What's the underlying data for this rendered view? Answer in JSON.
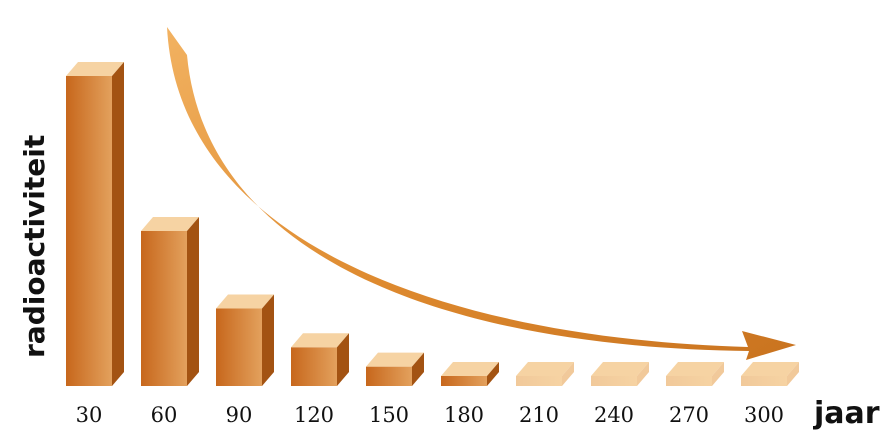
{
  "chart_data": {
    "type": "bar",
    "categories": [
      "30",
      "60",
      "90",
      "120",
      "150",
      "180",
      "210",
      "240",
      "270",
      "300"
    ],
    "values": [
      100,
      50,
      25,
      12.5,
      6.25,
      3.1,
      1.6,
      0.8,
      0.4,
      0.2
    ],
    "ylabel": "radioactiviteit",
    "xlabel": "jaar",
    "ylim": [
      0,
      100
    ],
    "grid": false,
    "legend": "none",
    "colors": {
      "bar_front_dark": "#c7671c",
      "bar_front_light": "#e3a15d",
      "bar_top": "#f6d3a3",
      "bar_side": "#a35312",
      "pale_front": "#f1c99a",
      "arrow": "#de8a2f"
    }
  }
}
